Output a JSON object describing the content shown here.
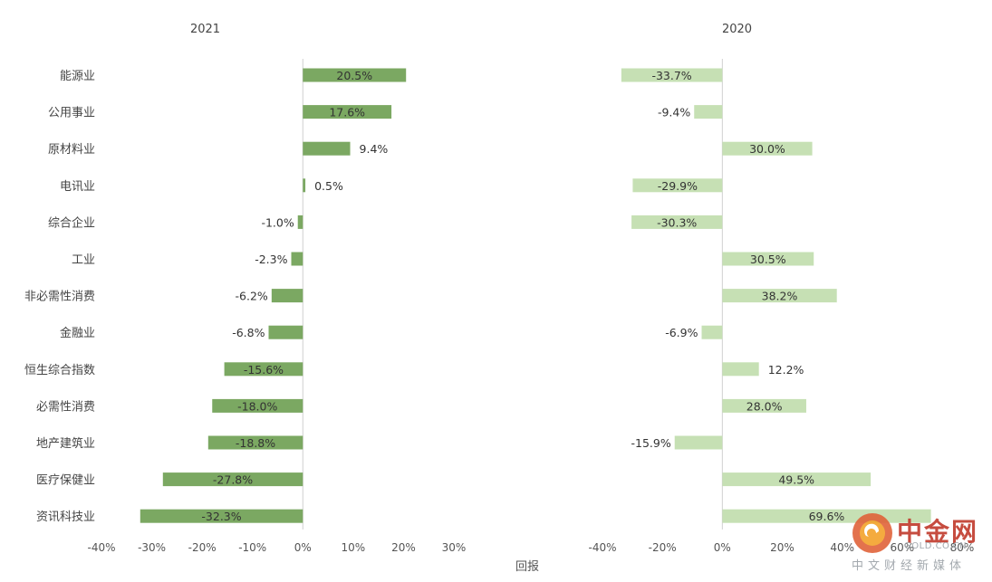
{
  "chart_data": [
    {
      "type": "bar",
      "orientation": "horizontal",
      "title": "2021",
      "categories": [
        "能源业",
        "公用事业",
        "原材料业",
        "电讯业",
        "综合企业",
        "工业",
        "非必需性消费",
        "金融业",
        "恒生综合指数",
        "必需性消费",
        "地产建筑业",
        "医疗保健业",
        "资讯科技业"
      ],
      "values": [
        20.5,
        17.6,
        9.4,
        0.5,
        -1.0,
        -2.3,
        -6.2,
        -6.8,
        -15.6,
        -18.0,
        -18.8,
        -27.8,
        -32.3
      ],
      "labels": [
        "20.5%",
        "17.6%",
        "9.4%",
        "0.5%",
        "-1.0%",
        "-2.3%",
        "-6.2%",
        "-6.8%",
        "-15.6%",
        "-18.0%",
        "-18.8%",
        "-27.8%",
        "-32.3%"
      ],
      "xlim": [
        -40,
        30
      ],
      "ticks": [
        -40,
        -30,
        -20,
        -10,
        0,
        10,
        20,
        30
      ],
      "tick_labels": [
        "-40%",
        "-30%",
        "-20%",
        "-10%",
        "0%",
        "10%",
        "20%",
        "30%"
      ],
      "color": "#7ba862"
    },
    {
      "type": "bar",
      "orientation": "horizontal",
      "title": "2020",
      "categories": [
        "能源业",
        "公用事业",
        "原材料业",
        "电讯业",
        "综合企业",
        "工业",
        "非必需性消费",
        "金融业",
        "恒生综合指数",
        "必需性消费",
        "地产建筑业",
        "医疗保健业",
        "资讯科技业"
      ],
      "values": [
        -33.7,
        -9.4,
        30.0,
        -29.9,
        -30.3,
        30.5,
        38.2,
        -6.9,
        12.2,
        28.0,
        -15.9,
        49.5,
        69.6
      ],
      "labels": [
        "-33.7%",
        "-9.4%",
        "30.0%",
        "-29.9%",
        "-30.3%",
        "30.5%",
        "38.2%",
        "-6.9%",
        "12.2%",
        "28.0%",
        "-15.9%",
        "49.5%",
        "69.6%"
      ],
      "xlim": [
        -40,
        80
      ],
      "ticks": [
        -40,
        -20,
        0,
        20,
        40,
        60,
        80
      ],
      "tick_labels": [
        "-40%",
        "-20%",
        "0%",
        "20%",
        "40%",
        "60%",
        "80%"
      ],
      "color": "#c6e0b4"
    }
  ],
  "xlabel": "回报",
  "watermark": {
    "title": "中金网",
    "domain": "GOLD.CO.CN",
    "slogan": "中文财经新媒体"
  }
}
